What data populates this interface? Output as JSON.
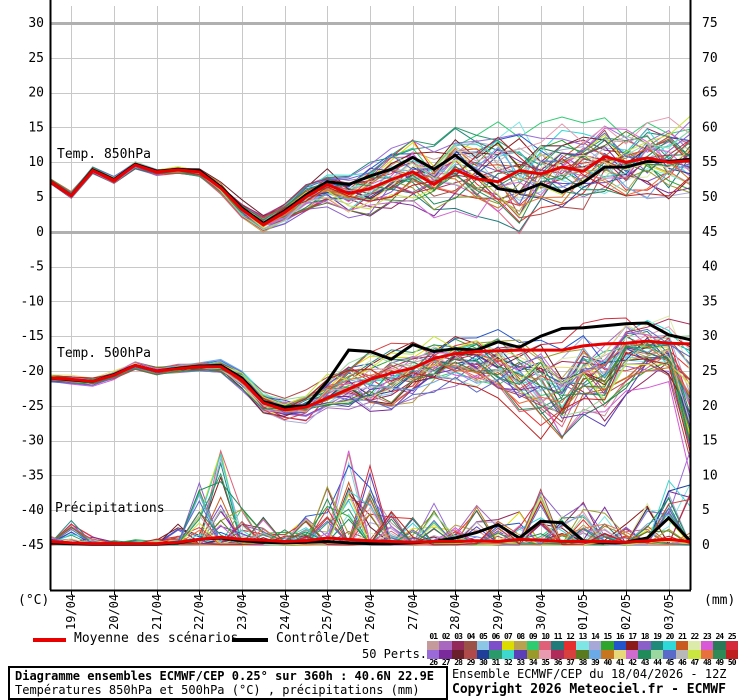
{
  "axes": {
    "left_caption": "(°C)",
    "right_caption": "(mm)",
    "left_ticks": [
      30,
      25,
      20,
      15,
      10,
      5,
      0,
      -5,
      -10,
      -15,
      -20,
      -25,
      -30,
      -35,
      -40,
      -45
    ],
    "right_ticks": [
      75,
      70,
      65,
      60,
      55,
      50,
      45,
      40,
      35,
      30,
      25,
      20,
      15,
      10,
      5,
      0
    ],
    "date_ticks": [
      "19/04",
      "20/04",
      "21/04",
      "22/04",
      "23/04",
      "24/04",
      "25/04",
      "26/04",
      "27/04",
      "28/04",
      "29/04",
      "30/04",
      "01/05",
      "02/05",
      "03/05"
    ]
  },
  "panel_labels": {
    "t850": "Temp. 850hPa",
    "t500": "Temp. 500hPa",
    "precip": "Précipitations"
  },
  "legend": {
    "mean_label": "Moyenne des scénarios",
    "control_label": "Contrôle/Det",
    "perts_label": "50 Perts."
  },
  "colors": {
    "mean": "#e80000",
    "control": "#000000",
    "grid": "#c8c8c8",
    "grid_major": "#b0b0b0",
    "frame": "#000000"
  },
  "perts": {
    "numbers_row1": [
      "01",
      "02",
      "03",
      "04",
      "05",
      "06",
      "07",
      "08",
      "09",
      "10",
      "11",
      "12",
      "13",
      "14",
      "15",
      "16",
      "17",
      "18",
      "19",
      "20",
      "21",
      "22",
      "23",
      "24",
      "25"
    ],
    "numbers_row2": [
      "26",
      "27",
      "28",
      "29",
      "30",
      "31",
      "32",
      "33",
      "34",
      "35",
      "36",
      "37",
      "38",
      "39",
      "40",
      "41",
      "42",
      "43",
      "44",
      "45",
      "46",
      "47",
      "48",
      "49",
      "50"
    ],
    "colors": [
      "#c49a9a",
      "#a868c0",
      "#93285a",
      "#9c5146",
      "#8cc8e6",
      "#7d4fc8",
      "#dcdc00",
      "#b8a14f",
      "#2ecc71",
      "#e0607a",
      "#1f7a7a",
      "#e62e2e",
      "#7fe6e6",
      "#a8a8d8",
      "#2ea62e",
      "#2255cc",
      "#8b1a1a",
      "#8a5fc8",
      "#1f8a7a",
      "#2ed8d8",
      "#c85a1f",
      "#dcebaa",
      "#d858d8",
      "#2a7a5a",
      "#d42a3c",
      "#9a6ad8",
      "#7a2a9a",
      "#6a1f2a",
      "#b04a4a",
      "#1f3f9a",
      "#2a9a6a",
      "#3fd8cf",
      "#5a3fb8",
      "#9a9a2a",
      "#e89ab0",
      "#b02a5a",
      "#d83f3f",
      "#5a7a1f",
      "#6aaae8",
      "#c8751f",
      "#e8d87a",
      "#cf6acf",
      "#1f8a5a",
      "#9ad8a0",
      "#5a6ac8",
      "#b8b8b8",
      "#c8e63f",
      "#e8703f",
      "#2e8b57",
      "#c01f1f"
    ]
  },
  "chart_data": [
    {
      "type": "line",
      "title": "Temp. 850hPa",
      "unit": "°C",
      "x_hours_step": 12,
      "x_hours_max": 360,
      "series": [
        {
          "name": "Moyenne des scénarios",
          "values": [
            7.3,
            5.2,
            8.8,
            7.4,
            9.6,
            8.6,
            8.9,
            8.6,
            6.3,
            3.2,
            1.0,
            2.8,
            5.0,
            6.8,
            5.5,
            6.2,
            7.5,
            8.6,
            6.8,
            8.9,
            7.6,
            7.2,
            8.8,
            8.3,
            9.3,
            8.7,
            10.8,
            10.0,
            10.6,
            10.0,
            10.2
          ]
        },
        {
          "name": "Contrôle/Det",
          "values": [
            7.3,
            5.2,
            8.9,
            7.5,
            9.7,
            8.7,
            9.0,
            8.8,
            6.5,
            3.4,
            1.2,
            3.0,
            5.3,
            7.2,
            6.8,
            8.0,
            9.0,
            10.7,
            9.0,
            11.0,
            8.6,
            6.2,
            5.7,
            6.9,
            5.7,
            7.1,
            9.3,
            9.3,
            10.1,
            10.1,
            10.4
          ]
        }
      ],
      "envelope_min": [
        6.8,
        4.6,
        8.2,
        6.8,
        9.0,
        8.0,
        8.3,
        7.8,
        5.2,
        1.8,
        -0.5,
        0.8,
        2.5,
        3.5,
        2.0,
        2.0,
        3.0,
        3.5,
        2.0,
        3.0,
        2.0,
        1.5,
        -2.4,
        1.0,
        2.0,
        2.5,
        3.5,
        3.0,
        3.5,
        3.0,
        2.9
      ],
      "envelope_max": [
        7.8,
        5.8,
        9.4,
        8.0,
        10.2,
        9.2,
        9.5,
        9.3,
        7.4,
        4.6,
        3.0,
        5.0,
        7.5,
        9.5,
        9.0,
        10.5,
        12.0,
        13.5,
        13.0,
        15.0,
        15.5,
        16.0,
        16.5,
        16.0,
        16.5,
        16.0,
        17.0,
        16.5,
        17.5,
        17.0,
        17.6
      ]
    },
    {
      "type": "line",
      "title": "Temp. 500hPa",
      "unit": "°C",
      "x_hours_step": 12,
      "x_hours_max": 360,
      "series": [
        {
          "name": "Moyenne des scénarios",
          "values": [
            -21.0,
            -21.2,
            -21.5,
            -20.6,
            -19.2,
            -20.0,
            -19.7,
            -19.4,
            -19.4,
            -21.3,
            -24.6,
            -25.6,
            -25.2,
            -23.9,
            -22.6,
            -21.2,
            -20.3,
            -19.6,
            -18.2,
            -17.5,
            -17.2,
            -17.1,
            -17.0,
            -17.0,
            -17.0,
            -16.4,
            -16.1,
            -16.0,
            -15.7,
            -16.0,
            -16.1
          ]
        },
        {
          "name": "Contrôle/Det",
          "values": [
            -21.0,
            -21.3,
            -21.5,
            -20.5,
            -19.2,
            -20.0,
            -19.6,
            -19.3,
            -19.2,
            -21.0,
            -24.4,
            -25.2,
            -25.0,
            -21.5,
            -17.0,
            -17.2,
            -18.3,
            -16.2,
            -17.2,
            -16.8,
            -17.0,
            -15.8,
            -16.6,
            -15.0,
            -13.9,
            -13.8,
            -13.5,
            -13.2,
            -13.1,
            -14.8,
            -15.5
          ]
        }
      ],
      "envelope_min": [
        -21.8,
        -22.0,
        -22.2,
        -21.3,
        -19.9,
        -20.7,
        -20.4,
        -20.2,
        -20.5,
        -23.0,
        -26.5,
        -27.5,
        -27.8,
        -27.0,
        -26.5,
        -28.0,
        -27.0,
        -25.5,
        -24.0,
        -23.0,
        -24.0,
        -25.0,
        -28.0,
        -30.0,
        -33.0,
        -28.5,
        -30.0,
        -24.0,
        -22.5,
        -23.0,
        -38.0
      ],
      "envelope_max": [
        -20.3,
        -20.5,
        -20.8,
        -19.9,
        -18.5,
        -19.3,
        -18.9,
        -18.6,
        -18.3,
        -19.5,
        -22.5,
        -23.5,
        -22.5,
        -20.0,
        -18.0,
        -16.5,
        -16.0,
        -15.5,
        -14.5,
        -14.0,
        -14.0,
        -14.0,
        -13.5,
        -13.5,
        -13.0,
        -13.0,
        -12.5,
        -12.0,
        -11.8,
        -12.0,
        -12.0
      ]
    },
    {
      "type": "line",
      "title": "Précipitations",
      "unit": "mm",
      "x_hours_step": 12,
      "x_hours_max": 360,
      "series": [
        {
          "name": "Moyenne des scénarios",
          "values": [
            0.5,
            0.3,
            0.2,
            0.2,
            0.2,
            0.2,
            0.4,
            0.8,
            1.1,
            0.8,
            0.7,
            0.5,
            0.6,
            1.0,
            0.8,
            0.6,
            0.5,
            0.4,
            0.5,
            0.5,
            0.6,
            0.5,
            0.8,
            0.7,
            0.5,
            0.5,
            0.5,
            0.4,
            0.6,
            0.8,
            0.5
          ]
        },
        {
          "name": "Contrôle/Det",
          "values": [
            0.3,
            0.2,
            0.1,
            0.1,
            0.1,
            0.1,
            0.3,
            0.8,
            1.0,
            0.6,
            0.4,
            0.3,
            0.4,
            0.5,
            0.3,
            0.2,
            0.2,
            0.3,
            0.5,
            1.0,
            1.8,
            2.9,
            1.0,
            3.4,
            3.2,
            0.6,
            0.3,
            0.4,
            1.0,
            3.9,
            0.6
          ]
        }
      ],
      "envelope_min": [
        0,
        0,
        0,
        0,
        0,
        0,
        0,
        0,
        0,
        0,
        0,
        0,
        0,
        0,
        0,
        0,
        0,
        0,
        0,
        0,
        0,
        0,
        0,
        0,
        0,
        0,
        0,
        0,
        0,
        0,
        0
      ],
      "envelope_max": [
        1.5,
        3.6,
        1.2,
        0.8,
        0.8,
        1.0,
        3.0,
        9.0,
        13.6,
        6.0,
        4.0,
        2.5,
        4.2,
        11.0,
        15.0,
        12.0,
        5.0,
        4.0,
        6.0,
        3.5,
        5.7,
        4.0,
        5.0,
        8.0,
        4.5,
        6.4,
        5.5,
        3.0,
        6.0,
        10.0,
        16.0
      ]
    }
  ],
  "footer": {
    "line1": "Diagramme ensembles ECMWF/CEP 0.25° sur 360h : 40.6N 22.9E",
    "line2": "Températures 850hPa et 500hPa (°C) , précipitations (mm)",
    "right1": "Ensemble ECMWF/CEP du 18/04/2026 - 12Z",
    "right2": "Copyright 2026 Meteociel.fr - ECMWF"
  }
}
